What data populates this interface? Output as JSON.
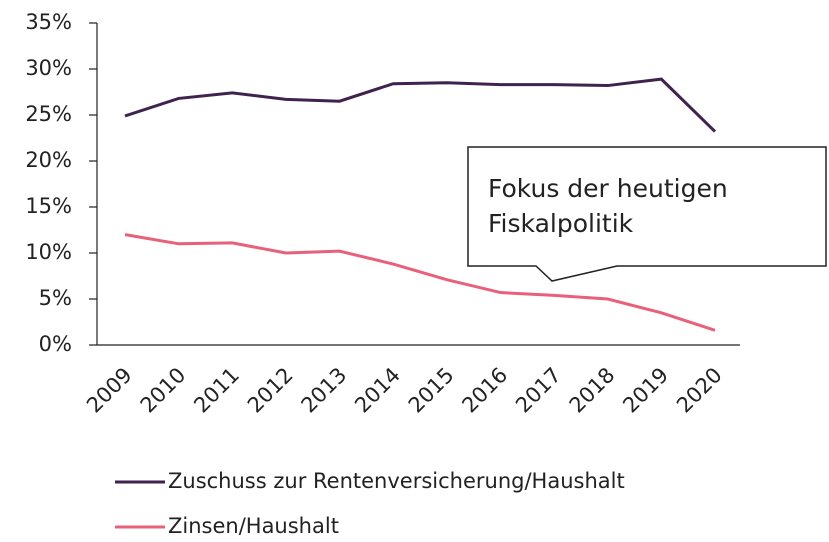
{
  "chart_data": {
    "type": "line",
    "categories": [
      "2009",
      "2010",
      "2011",
      "2012",
      "2013",
      "2014",
      "2015",
      "2016",
      "2017",
      "2018",
      "2019",
      "2020"
    ],
    "series": [
      {
        "name": "Zuschuss zur Rentenversicherung/Haushalt",
        "color": "#40224f",
        "values": [
          24.9,
          26.8,
          27.4,
          26.7,
          26.5,
          28.4,
          28.5,
          28.3,
          28.3,
          28.2,
          28.9,
          23.2
        ]
      },
      {
        "name": "Zinsen/Haushalt",
        "color": "#e8607a",
        "values": [
          12.0,
          11.0,
          11.1,
          10.0,
          10.2,
          8.8,
          7.1,
          5.7,
          5.4,
          5.0,
          3.5,
          1.6
        ]
      }
    ],
    "ylim": [
      0,
      35
    ],
    "yticks": [
      {
        "value": 0,
        "label": "0%"
      },
      {
        "value": 5,
        "label": "5%"
      },
      {
        "value": 10,
        "label": "10%"
      },
      {
        "value": 15,
        "label": "15%"
      },
      {
        "value": 20,
        "label": "20%"
      },
      {
        "value": 25,
        "label": "25%"
      },
      {
        "value": 30,
        "label": "30%"
      },
      {
        "value": 35,
        "label": "35%"
      }
    ],
    "grid": false,
    "legend": "bottom",
    "annotation": {
      "lines": [
        "Fokus der heutigen",
        "Fiskalpolitik"
      ]
    }
  }
}
